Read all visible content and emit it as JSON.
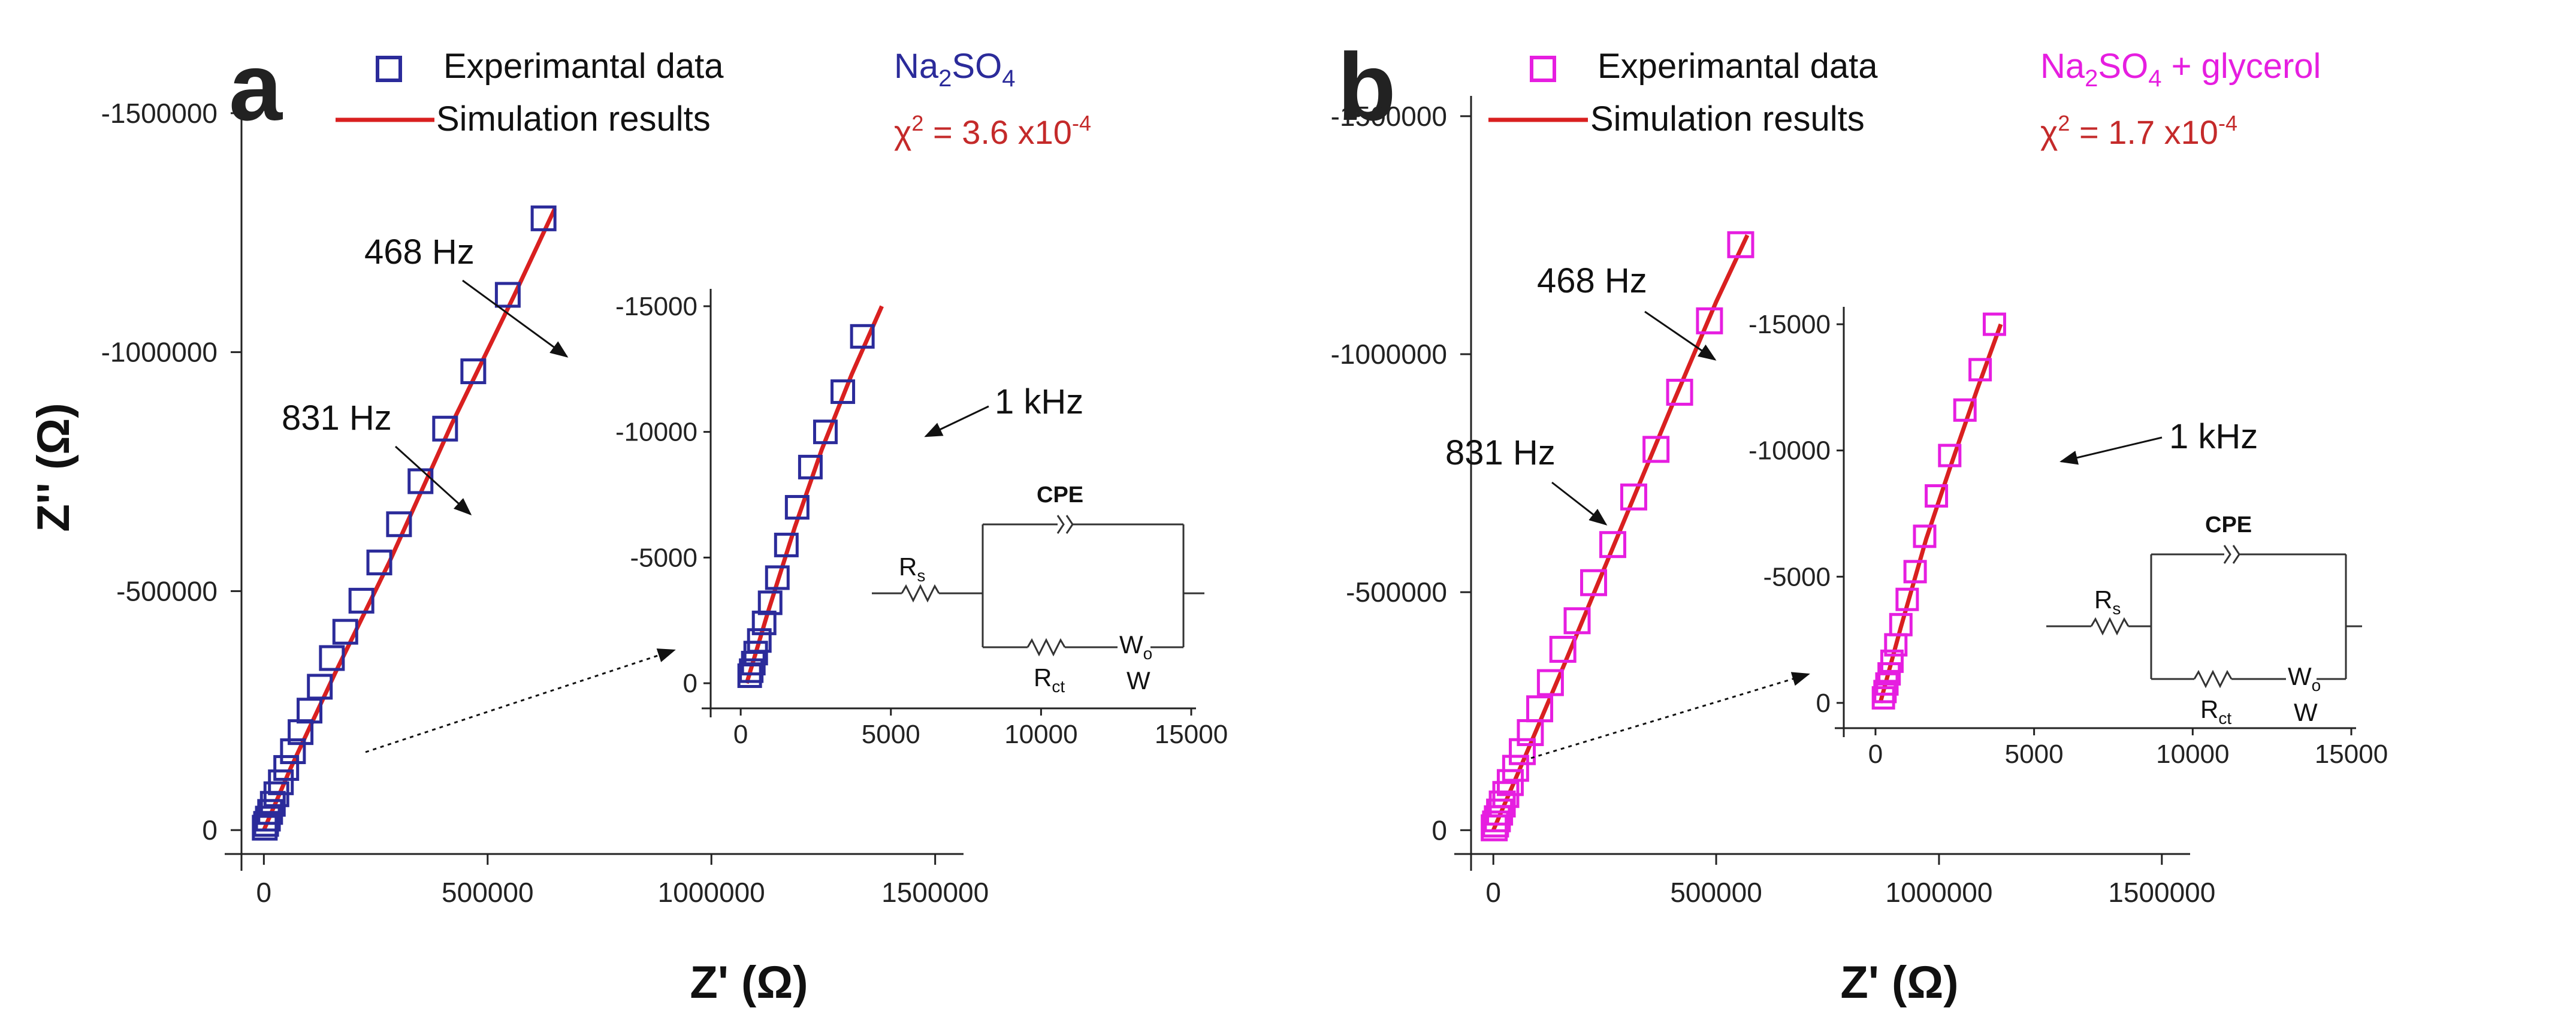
{
  "colors": {
    "series_a": "#2b2b9a",
    "series_b": "#e61ee0",
    "fit": "#d92020",
    "chi_text": "#c42a2a",
    "axis": "#222222"
  },
  "chart_data": [
    {
      "type": "scatter",
      "panel_label": "a",
      "title": "",
      "xlabel": "Z' (Ω)",
      "ylabel": "Z'' (Ω)",
      "xlim": [
        -50000,
        1550000
      ],
      "ylim": [
        50000,
        -1530000
      ],
      "xticks": [
        0,
        500000,
        1000000,
        1500000
      ],
      "yticks": [
        0,
        -500000,
        -1000000,
        -1500000
      ],
      "xtick_labels": [
        "0",
        "500000",
        "1000000",
        "1500000"
      ],
      "ytick_labels": [
        "0",
        "-500000",
        "-1000000",
        "-1500000"
      ],
      "legend": {
        "placement": "top-center",
        "entries": [
          "Experimantal data",
          "Simulation results"
        ]
      },
      "electrolyte": {
        "prefix": "Na",
        "sub1": "2",
        "mid": "SO",
        "sub2": "4",
        "suffix": ""
      },
      "chi_squared": {
        "symbol": "χ",
        "power": "2",
        "text": " = 3.6 x10",
        "exp": "-4"
      },
      "annotations": [
        "468 Hz",
        "831 Hz",
        "1 kHz"
      ],
      "series": [
        {
          "name": "Experimantal data",
          "marker": "square-open",
          "x": [
            2000,
            5000,
            9000,
            14000,
            20000,
            28000,
            38000,
            50000,
            65000,
            82000,
            102000,
            125000,
            152000,
            182000,
            218000,
            258000,
            302000,
            350000,
            405000,
            468000,
            545000,
            625000
          ],
          "y": [
            -5000,
            -13000,
            -24000,
            -38000,
            -55000,
            -75000,
            -100000,
            -130000,
            -165000,
            -205000,
            -250000,
            -300000,
            -360000,
            -415000,
            -480000,
            -560000,
            -640000,
            -730000,
            -840000,
            -960000,
            -1120000,
            -1280000
          ]
        },
        {
          "name": "Simulation results",
          "marker": "line",
          "x": [
            0,
            60000,
            160000,
            280000,
            420000,
            560000,
            650000
          ],
          "y": [
            0,
            -130000,
            -330000,
            -560000,
            -850000,
            -1120000,
            -1300000
          ]
        }
      ],
      "inset": {
        "xlim": [
          -1000,
          15000
        ],
        "ylim": [
          1000,
          -15500
        ],
        "xticks": [
          0,
          5000,
          10000,
          15000
        ],
        "yticks": [
          0,
          -5000,
          -10000,
          -15000
        ],
        "xtick_labels": [
          "0",
          "5000",
          "10000",
          "15000"
        ],
        "ytick_labels": [
          "0",
          "-5000",
          "-10000",
          "-15000"
        ],
        "series": [
          {
            "name": "Experimantal data",
            "x": [
              300,
              350,
              420,
              500,
              620,
              780,
              980,
              1220,
              1520,
              1880,
              2320,
              2820,
              3400,
              4050
            ],
            "y": [
              -300,
              -500,
              -800,
              -1200,
              -1700,
              -2400,
              -3200,
              -4200,
              -5500,
              -7000,
              -8600,
              -10000,
              -11600,
              -13800
            ]
          },
          {
            "name": "Simulation results",
            "x": [
              200,
              900,
              1800,
              2700,
              3700,
              4700
            ],
            "y": [
              0,
              -2800,
              -6200,
              -9300,
              -12300,
              -15000
            ]
          }
        ]
      },
      "circuit": {
        "rs": "R",
        "rs_sub": "s",
        "cpe": "CPE",
        "rct": "R",
        "rct_sub": "ct",
        "wo": "W",
        "wo_sub": "o",
        "w": "W"
      }
    },
    {
      "type": "scatter",
      "panel_label": "b",
      "title": "",
      "xlabel": "Z' (Ω)",
      "ylabel": "",
      "xlim": [
        -50000,
        1550000
      ],
      "ylim": [
        50000,
        -1530000
      ],
      "xticks": [
        0,
        500000,
        1000000,
        1500000
      ],
      "yticks": [
        0,
        -500000,
        -1000000,
        -1500000
      ],
      "xtick_labels": [
        "0",
        "500000",
        "1000000",
        "1500000"
      ],
      "ytick_labels": [
        "0",
        "-500000",
        "-1000000",
        "-1500000"
      ],
      "legend": {
        "placement": "top-center",
        "entries": [
          "Experimantal data",
          "Simulation results"
        ]
      },
      "electrolyte": {
        "prefix": "Na",
        "sub1": "2",
        "mid": "SO",
        "sub2": "4",
        "suffix": " + glycerol"
      },
      "chi_squared": {
        "symbol": "χ",
        "power": "2",
        "text": " = 1.7 x10",
        "exp": "-4"
      },
      "annotations": [
        "468 Hz",
        "831 Hz",
        "1 kHz"
      ],
      "series": [
        {
          "name": "Experimantal data",
          "marker": "square-open",
          "x": [
            2000,
            5000,
            9000,
            14000,
            20000,
            28000,
            38000,
            50000,
            65000,
            83000,
            104000,
            128000,
            156000,
            188000,
            225000,
            268000,
            315000,
            365000,
            418000,
            485000,
            555000
          ],
          "y": [
            -5000,
            -13000,
            -24000,
            -38000,
            -55000,
            -75000,
            -100000,
            -130000,
            -165000,
            -205000,
            -255000,
            -310000,
            -380000,
            -440000,
            -520000,
            -600000,
            -700000,
            -800000,
            -920000,
            -1070000,
            -1230000
          ]
        },
        {
          "name": "Simulation results",
          "marker": "line",
          "x": [
            0,
            60000,
            160000,
            280000,
            400000,
            500000,
            570000
          ],
          "y": [
            0,
            -130000,
            -350000,
            -620000,
            -890000,
            -1110000,
            -1250000
          ]
        }
      ],
      "inset": {
        "xlim": [
          -1000,
          15000
        ],
        "ylim": [
          1000,
          -15500
        ],
        "xticks": [
          0,
          5000,
          10000,
          15000
        ],
        "yticks": [
          0,
          -5000,
          -10000,
          -15000
        ],
        "xtick_labels": [
          "0",
          "5000",
          "10000",
          "15000"
        ],
        "ytick_labels": [
          "0",
          "-5000",
          "-10000",
          "-15000"
        ],
        "series": [
          {
            "name": "Experimantal data",
            "x": [
              250,
              300,
              360,
              430,
              520,
              640,
              800,
              1000,
              1250,
              1550,
              1920,
              2340,
              2820,
              3300,
              3750
            ],
            "y": [
              -200,
              -450,
              -750,
              -1150,
              -1650,
              -2300,
              -3100,
              -4100,
              -5200,
              -6600,
              -8200,
              -9800,
              -11600,
              -13200,
              -15000
            ]
          },
          {
            "name": "Simulation results",
            "x": [
              150,
              800,
              1600,
              2400,
              3200,
              3950
            ],
            "y": [
              0,
              -3000,
              -6500,
              -9500,
              -12400,
              -15000
            ]
          }
        ]
      },
      "circuit": {
        "rs": "R",
        "rs_sub": "s",
        "cpe": "CPE",
        "rct": "R",
        "rct_sub": "ct",
        "wo": "W",
        "wo_sub": "o",
        "w": "W"
      }
    }
  ]
}
